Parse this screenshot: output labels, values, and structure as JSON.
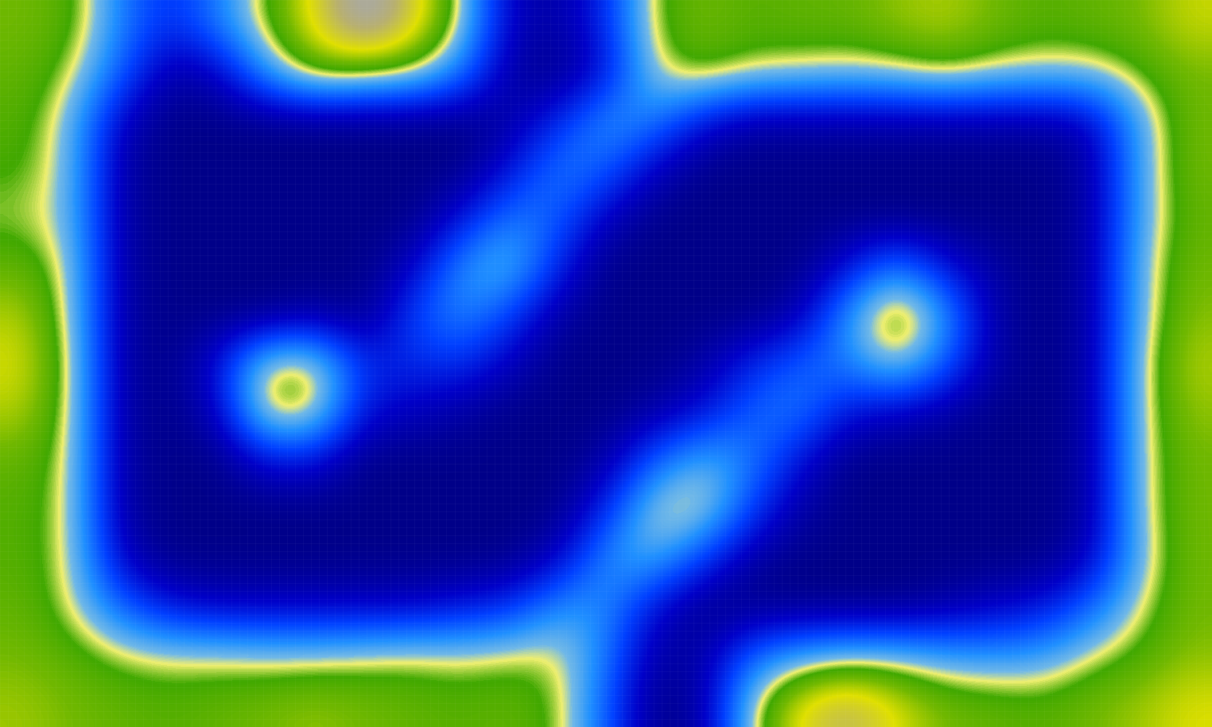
{
  "chart_data": {
    "type": "heatmap",
    "tick_labels": false,
    "cells": [
      [
        62,
        58,
        35,
        20,
        35,
        55,
        75,
        100,
        80,
        50,
        10,
        5,
        20,
        55,
        62,
        58,
        60,
        60,
        65,
        68,
        62,
        58,
        60,
        62,
        70
      ],
      [
        60,
        52,
        30,
        5,
        10,
        40,
        60,
        55,
        52,
        35,
        5,
        0,
        15,
        50,
        58,
        52,
        50,
        48,
        50,
        55,
        50,
        48,
        48,
        55,
        62
      ],
      [
        58,
        45,
        10,
        0,
        0,
        0,
        0,
        0,
        0,
        0,
        5,
        20,
        40,
        35,
        15,
        5,
        5,
        5,
        5,
        5,
        5,
        5,
        10,
        42,
        62
      ],
      [
        56,
        45,
        5,
        0,
        0,
        0,
        0,
        0,
        0,
        0,
        15,
        35,
        30,
        10,
        0,
        0,
        0,
        0,
        0,
        0,
        0,
        0,
        5,
        42,
        62
      ],
      [
        52,
        45,
        5,
        0,
        0,
        0,
        0,
        0,
        0,
        15,
        35,
        30,
        10,
        0,
        0,
        0,
        0,
        0,
        0,
        0,
        0,
        0,
        5,
        42,
        60
      ],
      [
        60,
        48,
        5,
        0,
        0,
        0,
        0,
        0,
        10,
        38,
        48,
        20,
        0,
        0,
        0,
        0,
        0,
        15,
        35,
        15,
        5,
        0,
        5,
        45,
        62
      ],
      [
        68,
        48,
        5,
        0,
        0,
        0,
        5,
        0,
        25,
        38,
        25,
        5,
        0,
        0,
        0,
        0,
        8,
        40,
        66,
        40,
        5,
        0,
        5,
        45,
        64
      ],
      [
        72,
        50,
        5,
        0,
        15,
        55,
        55,
        20,
        20,
        22,
        10,
        0,
        0,
        0,
        5,
        20,
        30,
        35,
        52,
        30,
        5,
        0,
        5,
        48,
        68
      ],
      [
        68,
        50,
        5,
        0,
        10,
        58,
        55,
        15,
        10,
        5,
        0,
        0,
        0,
        5,
        15,
        30,
        35,
        15,
        10,
        5,
        0,
        0,
        5,
        48,
        65
      ],
      [
        60,
        50,
        5,
        0,
        0,
        15,
        15,
        0,
        0,
        0,
        0,
        0,
        5,
        30,
        45,
        35,
        15,
        0,
        0,
        0,
        0,
        0,
        5,
        48,
        62
      ],
      [
        58,
        50,
        5,
        0,
        0,
        0,
        0,
        0,
        0,
        0,
        0,
        0,
        20,
        52,
        54,
        25,
        5,
        0,
        0,
        0,
        0,
        0,
        5,
        48,
        62
      ],
      [
        58,
        50,
        10,
        0,
        0,
        0,
        0,
        0,
        0,
        0,
        0,
        10,
        38,
        45,
        25,
        5,
        0,
        0,
        0,
        0,
        0,
        0,
        10,
        45,
        62
      ],
      [
        60,
        50,
        30,
        15,
        10,
        10,
        10,
        10,
        10,
        15,
        20,
        38,
        38,
        15,
        0,
        0,
        0,
        0,
        0,
        5,
        10,
        15,
        30,
        50,
        62
      ],
      [
        62,
        58,
        52,
        50,
        50,
        48,
        48,
        50,
        52,
        50,
        52,
        52,
        35,
        5,
        5,
        30,
        40,
        45,
        45,
        40,
        38,
        40,
        50,
        56,
        64
      ],
      [
        66,
        62,
        60,
        58,
        60,
        62,
        65,
        62,
        60,
        58,
        60,
        55,
        30,
        0,
        5,
        50,
        75,
        85,
        72,
        62,
        60,
        58,
        62,
        66,
        72
      ]
    ]
  }
}
